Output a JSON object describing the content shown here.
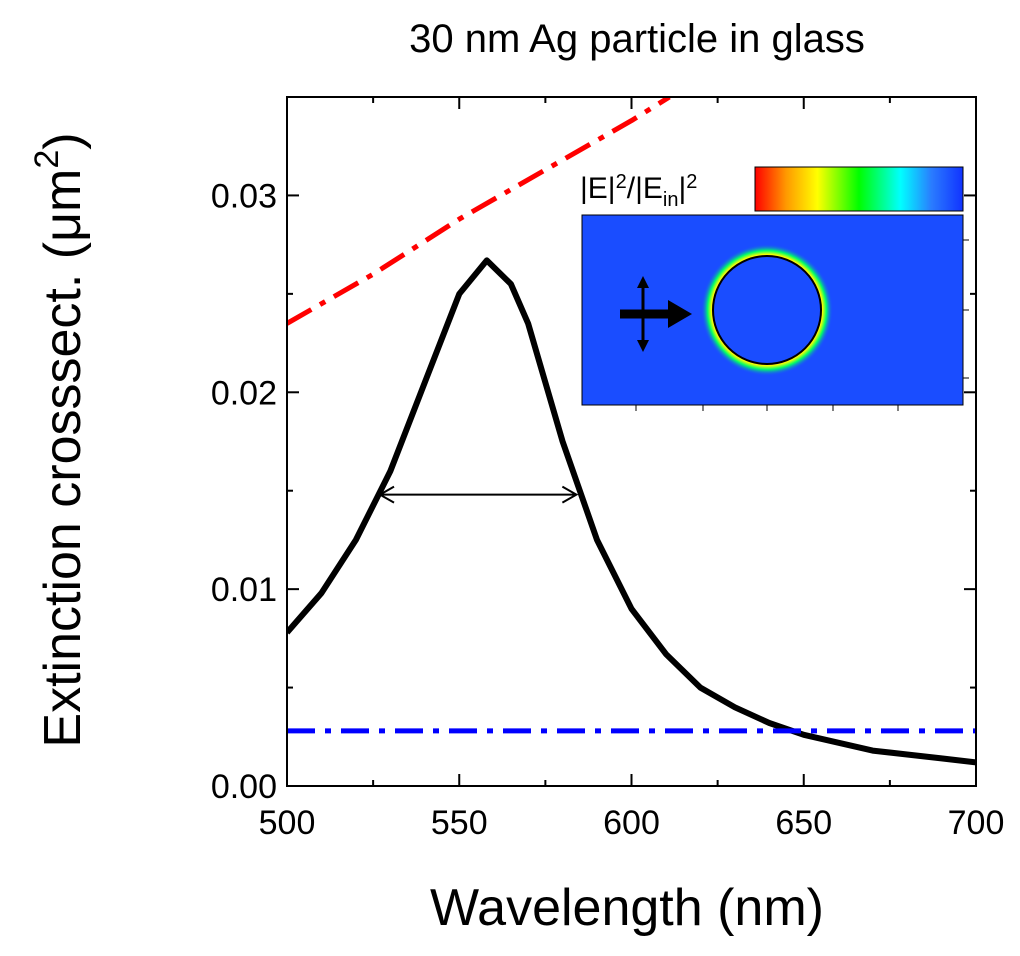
{
  "chart_data": {
    "type": "line",
    "title": "30 nm Ag particle in glass",
    "xlabel": "Wavelength (nm)",
    "ylabel_parts": [
      "Extinction crosssect. (μm",
      "2",
      ")"
    ],
    "xlim": [
      500,
      700
    ],
    "ylim": [
      0,
      0.035
    ],
    "xticks": [
      500,
      550,
      600,
      650,
      700
    ],
    "yticks": [
      {
        "value": 0,
        "label": "0.00"
      },
      0.01,
      0.02,
      0.03
    ],
    "xminor": [
      525,
      575,
      625,
      675
    ],
    "yminor": [
      0.005,
      0.015,
      0.025
    ],
    "series": [
      {
        "color": "#000000",
        "style": "solid",
        "x": [
          500,
          510,
          520,
          530,
          540,
          550,
          558,
          565,
          570,
          580,
          590,
          600,
          610,
          620,
          630,
          640,
          650,
          660,
          670,
          680,
          690,
          700
        ],
        "values": [
          0.0078,
          0.0098,
          0.0125,
          0.016,
          0.0205,
          0.025,
          0.0267,
          0.0255,
          0.0235,
          0.0175,
          0.0125,
          0.009,
          0.0067,
          0.005,
          0.004,
          0.0032,
          0.0026,
          0.0022,
          0.0018,
          0.0016,
          0.0014,
          0.0012
        ]
      },
      {
        "color": "#ff0000",
        "style": "dashdot",
        "x": [
          500,
          525,
          550,
          575,
          600,
          611
        ],
        "values": [
          0.0235,
          0.026,
          0.0288,
          0.0313,
          0.0338,
          0.035
        ]
      },
      {
        "color": "#0000ff",
        "style": "dashdot",
        "x": [
          500,
          700
        ],
        "values": [
          0.0028,
          0.0028
        ]
      }
    ],
    "fwhm_arrow": {
      "x": [
        527,
        584
      ],
      "y": 0.0148
    },
    "inset_label_parts": [
      "|E|",
      "2",
      "/|E",
      "in",
      "|",
      "2"
    ]
  }
}
